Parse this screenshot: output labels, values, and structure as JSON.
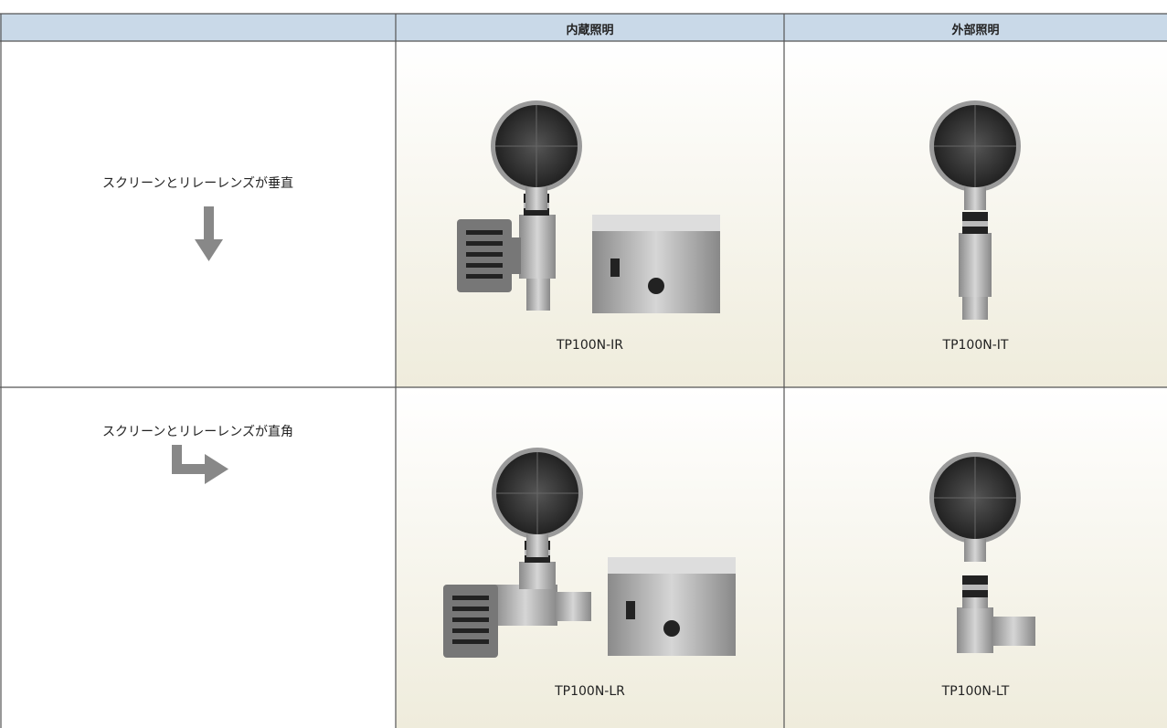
{
  "table": {
    "header": [
      "内蔵照明",
      "外部照明"
    ],
    "rows": [
      {
        "label": "スクリーンとリレーレンズが垂直",
        "products": [
          "TP100N-IR",
          "TP100N-IT"
        ]
      },
      {
        "label": "スクリーンとリレーレンズが直角",
        "products": [
          "TP100N-LR",
          "TP100N-LT"
        ]
      }
    ]
  }
}
